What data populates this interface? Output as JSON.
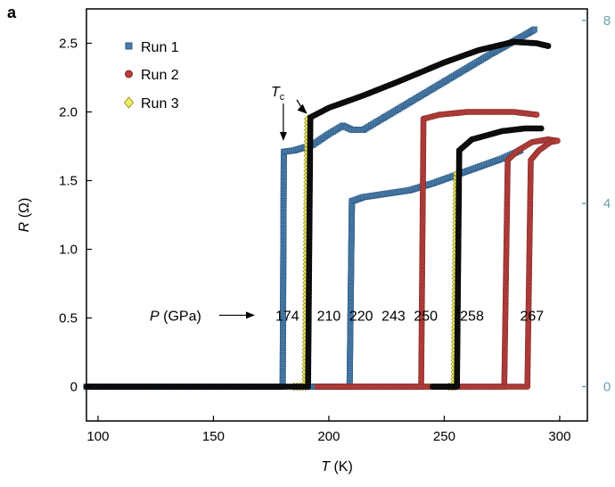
{
  "panel_label": "a",
  "chart_data": {
    "type": "scatter",
    "xlabel": {
      "main": "T",
      "unit": " (K)"
    },
    "ylabel": {
      "main": "R",
      "unit": " (Ω)"
    },
    "xlim": [
      95,
      312
    ],
    "ylim": [
      -0.25,
      2.75
    ],
    "xticks": [
      "100",
      "150",
      "200",
      "250",
      "300"
    ],
    "yticks": [
      "0",
      "0.5",
      "1.0",
      "1.5",
      "2.0",
      "2.5"
    ],
    "y2ticks": [
      "0",
      "4",
      "8"
    ],
    "y2_values": [
      0,
      4,
      8
    ],
    "y2_color": "#6a9fb3",
    "legend_position": "top-left",
    "pressure_label": {
      "main": "P",
      "unit": " (GPa)"
    },
    "tc_label": {
      "main": "T",
      "sub": "c"
    },
    "pressures": [
      {
        "text": "174",
        "x": 182
      },
      {
        "text": "210",
        "x": 200
      },
      {
        "text": "220",
        "x": 214
      },
      {
        "text": "243",
        "x": 228
      },
      {
        "text": "250",
        "x": 242
      },
      {
        "text": "258",
        "x": 262
      },
      {
        "text": "267",
        "x": 288
      }
    ],
    "series": [
      {
        "name": "Run 1",
        "marker": "square",
        "color": "#4a7ba7",
        "edge": "#2d5a85"
      },
      {
        "name": "Run 2",
        "marker": "circle",
        "color": "#b5403c",
        "edge": "#8a2a28"
      },
      {
        "name": "Run 3",
        "marker": "diamond",
        "color": "#f0ea6a",
        "edge": "#a09a20"
      }
    ],
    "curves": [
      {
        "id": "run1-174",
        "series": 0,
        "tc": 180,
        "pts": [
          [
            95,
            0
          ],
          [
            180,
            0
          ],
          [
            180.5,
            1.71
          ],
          [
            185,
            1.72
          ],
          [
            193,
            1.76
          ],
          [
            200,
            1.84
          ],
          [
            206,
            1.9
          ],
          [
            210,
            1.87
          ],
          [
            215,
            1.87
          ],
          [
            230,
            2.02
          ],
          [
            250,
            2.22
          ],
          [
            270,
            2.42
          ],
          [
            286,
            2.57
          ],
          [
            289,
            2.6
          ]
        ]
      },
      {
        "id": "run1-220",
        "series": 0,
        "tc": 210,
        "pts": [
          [
            190,
            0
          ],
          [
            209,
            0
          ],
          [
            210,
            1.35
          ],
          [
            215,
            1.38
          ],
          [
            235,
            1.43
          ],
          [
            245,
            1.48
          ],
          [
            260,
            1.57
          ],
          [
            275,
            1.66
          ],
          [
            283,
            1.72
          ]
        ]
      },
      {
        "id": "run3-210",
        "series": 2,
        "tc": 191,
        "pts": [
          [
            185,
            0
          ],
          [
            190,
            0
          ],
          [
            191,
            1.95
          ]
        ]
      },
      {
        "id": "run3-258",
        "series": 2,
        "tc": 255,
        "pts": [
          [
            252,
            0
          ],
          [
            254.5,
            0
          ],
          [
            255.5,
            1.55
          ]
        ]
      },
      {
        "id": "run2-243",
        "series": 1,
        "tc": 241,
        "pts": [
          [
            195,
            0
          ],
          [
            240,
            0
          ],
          [
            241,
            1.95
          ],
          [
            248,
            1.98
          ],
          [
            260,
            2.0
          ],
          [
            280,
            2.0
          ],
          [
            290,
            1.98
          ]
        ]
      },
      {
        "id": "run2-258",
        "series": 1,
        "tc": 276,
        "pts": [
          [
            200,
            0
          ],
          [
            276,
            0
          ],
          [
            277.5,
            1.65
          ],
          [
            282,
            1.72
          ],
          [
            288,
            1.78
          ],
          [
            295,
            1.8
          ],
          [
            299,
            1.79
          ]
        ]
      },
      {
        "id": "run2-267",
        "series": 1,
        "tc": 286,
        "pts": [
          [
            205,
            0
          ],
          [
            286,
            0
          ],
          [
            287.5,
            1.65
          ],
          [
            291,
            1.72
          ],
          [
            296,
            1.78
          ],
          [
            299,
            1.79
          ]
        ]
      },
      {
        "id": "black-210",
        "series": -1,
        "tc": 191,
        "pts": [
          [
            95,
            0
          ],
          [
            191,
            0
          ],
          [
            192,
            1.96
          ],
          [
            200,
            2.03
          ],
          [
            215,
            2.12
          ],
          [
            230,
            2.22
          ],
          [
            250,
            2.36
          ],
          [
            265,
            2.45
          ],
          [
            280,
            2.51
          ],
          [
            290,
            2.5
          ],
          [
            295,
            2.48
          ]
        ]
      },
      {
        "id": "black-250",
        "series": -1,
        "tc": 256,
        "pts": [
          [
            245,
            0
          ],
          [
            255.5,
            0
          ],
          [
            256.5,
            1.72
          ],
          [
            262,
            1.8
          ],
          [
            275,
            1.86
          ],
          [
            285,
            1.88
          ],
          [
            292,
            1.88
          ]
        ]
      }
    ]
  }
}
